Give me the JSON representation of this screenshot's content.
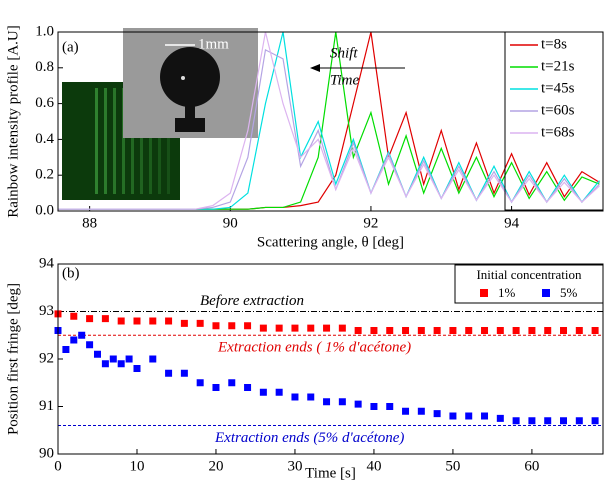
{
  "chart_data": [
    {
      "type": "line",
      "panel_label": "(a)",
      "x_label": "Scattering angle, θ [deg]",
      "y_label": "Rainbow intensity profile [A.U]",
      "annotations": [
        "Shift",
        "Time"
      ],
      "inset_scale": "1mm",
      "xlim": [
        87.55,
        95.3
      ],
      "xticks": [
        88,
        90,
        92,
        94
      ],
      "ylim": [
        0,
        1
      ],
      "yticks": [
        {
          "value": 0,
          "label": "0.0"
        },
        0.2,
        0.4,
        0.6,
        0.8,
        {
          "value": 1,
          "label": "1.0"
        }
      ],
      "legend": "upper right",
      "x": [
        87.55,
        89.5,
        89.75,
        90.0,
        90.25,
        90.5,
        90.75,
        91.0,
        91.25,
        91.5,
        91.75,
        92.0,
        92.25,
        92.5,
        92.75,
        93.0,
        93.25,
        93.5,
        93.75,
        94.0,
        94.25,
        94.5,
        94.75,
        95.0,
        95.25
      ],
      "series": [
        {
          "name": "t=8s",
          "color": "#e00000",
          "values": [
            0.01,
            0.01,
            0.01,
            0.01,
            0.01,
            0.02,
            0.02,
            0.03,
            0.05,
            0.2,
            0.6,
            1.0,
            0.3,
            0.55,
            0.15,
            0.45,
            0.12,
            0.38,
            0.1,
            0.32,
            0.09,
            0.27,
            0.08,
            0.22,
            0.16
          ]
        },
        {
          "name": "t=21s",
          "color": "#00dd00",
          "values": [
            0.01,
            0.01,
            0.01,
            0.01,
            0.01,
            0.02,
            0.02,
            0.05,
            0.3,
            1.0,
            0.3,
            0.55,
            0.15,
            0.42,
            0.1,
            0.35,
            0.1,
            0.3,
            0.08,
            0.27,
            0.07,
            0.22,
            0.06,
            0.19,
            0.15
          ]
        },
        {
          "name": "t=45s",
          "color": "#00e0e0",
          "values": [
            0.01,
            0.01,
            0.01,
            0.02,
            0.1,
            0.6,
            1.0,
            0.3,
            0.5,
            0.15,
            0.4,
            0.1,
            0.33,
            0.08,
            0.3,
            0.07,
            0.27,
            0.06,
            0.25,
            0.05,
            0.22,
            0.05,
            0.2,
            0.05,
            0.17
          ]
        },
        {
          "name": "t=60s",
          "color": "#b4a4e4",
          "values": [
            0.01,
            0.01,
            0.02,
            0.05,
            0.3,
            0.9,
            0.85,
            0.25,
            0.45,
            0.12,
            0.38,
            0.1,
            0.32,
            0.08,
            0.28,
            0.07,
            0.25,
            0.06,
            0.22,
            0.05,
            0.2,
            0.05,
            0.18,
            0.05,
            0.15
          ]
        },
        {
          "name": "t=68s",
          "color": "#dcb4f0",
          "values": [
            0.01,
            0.01,
            0.03,
            0.1,
            0.45,
            1.0,
            0.6,
            0.3,
            0.4,
            0.12,
            0.35,
            0.1,
            0.3,
            0.08,
            0.26,
            0.07,
            0.23,
            0.06,
            0.2,
            0.05,
            0.18,
            0.05,
            0.16,
            0.05,
            0.14
          ]
        }
      ]
    },
    {
      "type": "scatter",
      "panel_label": "(b)",
      "x_label": "Time [s]",
      "y_label": "Position first fringe  [deg]",
      "legend_title": "Initial concentration",
      "legend": "upper right",
      "xlim": [
        0,
        69
      ],
      "xticks": [
        0,
        10,
        20,
        30,
        40,
        50,
        60
      ],
      "ylim": [
        90,
        94
      ],
      "yticks": [
        90,
        91,
        92,
        93,
        94
      ],
      "reference_lines": [
        {
          "value": 93.0,
          "label": "Before extraction",
          "color": "#000000"
        },
        {
          "value": 92.5,
          "label": "Extraction ends ( 1% d'acétone)",
          "color": "#e00000"
        },
        {
          "value": 90.6,
          "label": "Extraction ends (5% d'acétone)",
          "color": "#0000cc"
        }
      ],
      "series": [
        {
          "name": "1%",
          "color": "#ff0000",
          "x": [
            0,
            2,
            4,
            6,
            8,
            10,
            12,
            14,
            16,
            18,
            20,
            22,
            24,
            26,
            28,
            30,
            32,
            34,
            36,
            38,
            40,
            42,
            44,
            46,
            48,
            50,
            52,
            54,
            56,
            58,
            60,
            62,
            64,
            66,
            68
          ],
          "values": [
            92.95,
            92.9,
            92.85,
            92.85,
            92.8,
            92.8,
            92.8,
            92.8,
            92.75,
            92.75,
            92.7,
            92.7,
            92.7,
            92.65,
            92.65,
            92.65,
            92.65,
            92.65,
            92.65,
            92.6,
            92.6,
            92.6,
            92.6,
            92.6,
            92.6,
            92.6,
            92.6,
            92.6,
            92.6,
            92.6,
            92.6,
            92.6,
            92.6,
            92.6,
            92.6
          ]
        },
        {
          "name": "5%",
          "color": "#0000ff",
          "x": [
            0,
            1,
            2,
            3,
            4,
            5,
            6,
            7,
            8,
            9,
            10,
            12,
            14,
            16,
            18,
            20,
            22,
            24,
            26,
            28,
            30,
            32,
            34,
            36,
            38,
            40,
            42,
            44,
            46,
            48,
            50,
            52,
            54,
            56,
            58,
            60,
            62,
            64,
            66,
            68
          ],
          "values": [
            92.6,
            92.2,
            92.4,
            92.5,
            92.3,
            92.1,
            91.9,
            92.0,
            91.9,
            92.0,
            91.8,
            92.0,
            91.7,
            91.7,
            91.5,
            91.4,
            91.5,
            91.4,
            91.3,
            91.3,
            91.2,
            91.2,
            91.1,
            91.1,
            91.05,
            91.0,
            91.0,
            90.9,
            90.9,
            90.85,
            90.8,
            90.8,
            90.8,
            90.75,
            90.7,
            90.7,
            90.7,
            90.7,
            90.7,
            90.7
          ]
        }
      ]
    }
  ]
}
